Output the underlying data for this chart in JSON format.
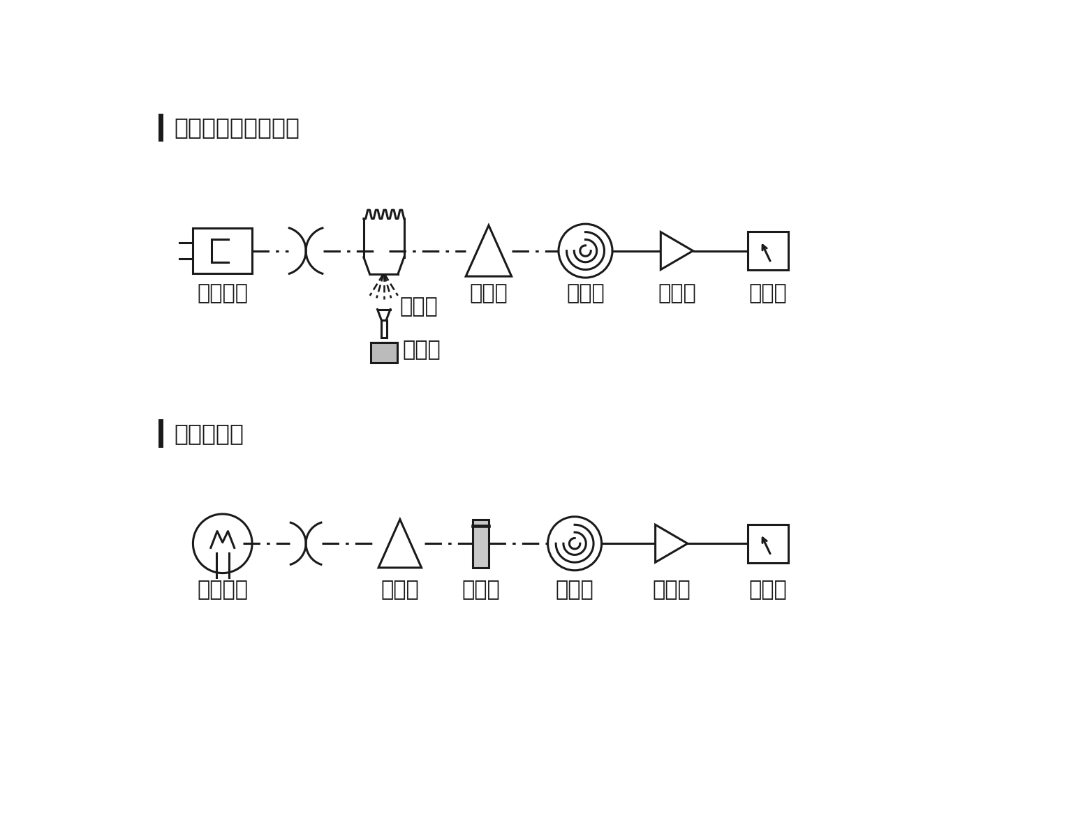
{
  "title1": "原子吸收分光光度计",
  "title2": "分光光度计",
  "row1_labels": [
    "锐线光源",
    "燃烧头",
    "分光器",
    "检测器",
    "放大器",
    "指示计"
  ],
  "row1_sub_labels": [
    "样品室"
  ],
  "row2_labels": [
    "连续光源",
    "分光器",
    "比色皿",
    "检测器",
    "放大器",
    "指示计"
  ],
  "bg_color": "#ffffff",
  "line_color": "#1a1a1a",
  "fill_color": "#cccccc",
  "font_size": 22,
  "title_font_size": 24,
  "lw": 2.2
}
